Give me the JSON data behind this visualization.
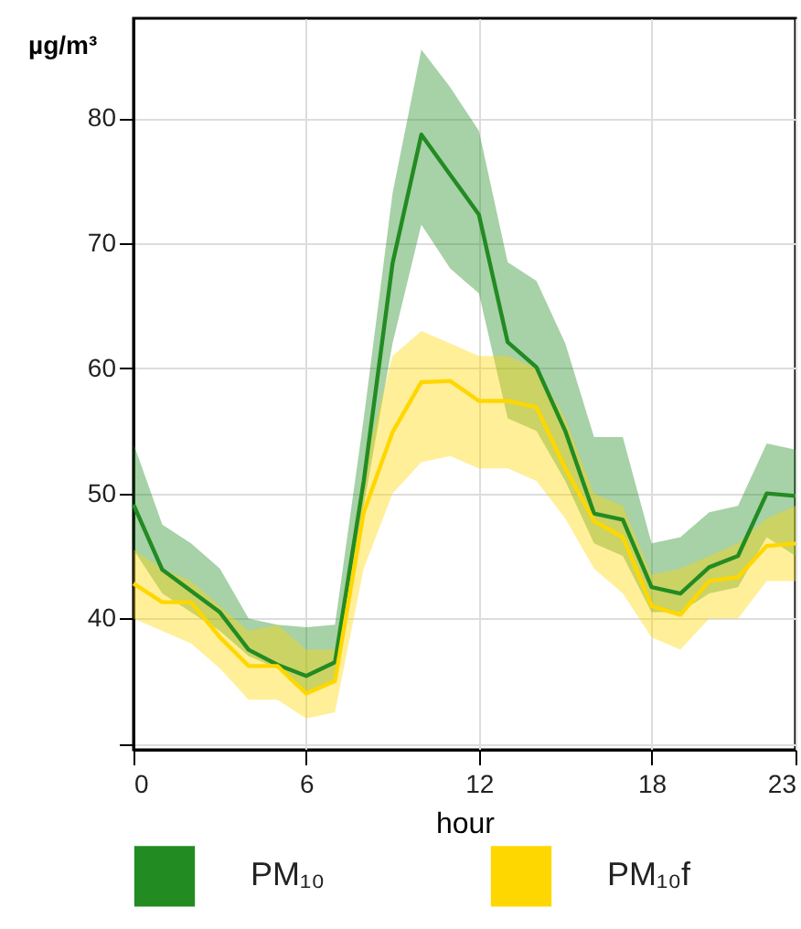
{
  "chart_data": {
    "type": "line",
    "xlabel": "hour",
    "ylabel": "µg/m³",
    "x": [
      0,
      1,
      2,
      3,
      4,
      5,
      6,
      7,
      8,
      9,
      10,
      11,
      12,
      13,
      14,
      15,
      16,
      17,
      18,
      19,
      20,
      21,
      22,
      23
    ],
    "xlim": [
      0,
      23
    ],
    "xticks": [
      0,
      6,
      12,
      18,
      23
    ],
    "ylim": [
      29.5,
      88
    ],
    "yticks": [
      {
        "value": 30,
        "label": null
      },
      40,
      50,
      60,
      70,
      80
    ],
    "grid": true,
    "legend": "bottom",
    "marker": "none",
    "line_style": "solid",
    "series": [
      {
        "name": "PM₁₀",
        "color": "#228b22",
        "values": [
          49.1,
          43.9,
          42.2,
          40.5,
          37.5,
          36.3,
          35.4,
          36.5,
          51,
          68.4,
          78.7,
          75.5,
          72.3,
          62.1,
          60.1,
          55,
          48.4,
          47.9,
          42.5,
          42,
          44.1,
          45,
          50,
          49.8
        ],
        "lower": [
          45.5,
          42,
          40.5,
          39,
          37,
          36,
          34,
          35,
          49,
          62,
          71.5,
          68,
          66,
          56,
          55,
          51,
          46,
          45,
          40.5,
          40.5,
          42,
          42.5,
          46.5,
          45
        ],
        "upper": [
          54,
          47.5,
          46,
          44,
          40,
          39.5,
          39.3,
          39.5,
          56,
          74,
          85.5,
          82.5,
          79,
          68.5,
          67,
          62,
          54.5,
          54.5,
          46,
          46.5,
          48.5,
          49,
          54,
          53.5
        ]
      },
      {
        "name": "PM₁₀f",
        "color": "#ffd700",
        "values": [
          42.8,
          41.3,
          41.3,
          38.5,
          36.2,
          36.2,
          34,
          35,
          48.5,
          54.9,
          58.9,
          59,
          57.4,
          57.4,
          56.9,
          52,
          47.8,
          46.5,
          41,
          40.3,
          43,
          43.3,
          45.8,
          46
        ],
        "lower": [
          40,
          39,
          38,
          36,
          33.5,
          33.5,
          32,
          32.5,
          44,
          50,
          52.5,
          53,
          52,
          52,
          51,
          48,
          44,
          42,
          38.5,
          37.5,
          40,
          40,
          43,
          43
        ],
        "upper": [
          45.5,
          44,
          43,
          41,
          39,
          39.5,
          37.5,
          37.5,
          52,
          61,
          63,
          62,
          61,
          61,
          60,
          56,
          50,
          49,
          43.5,
          44,
          45,
          46,
          48,
          49
        ]
      }
    ]
  }
}
